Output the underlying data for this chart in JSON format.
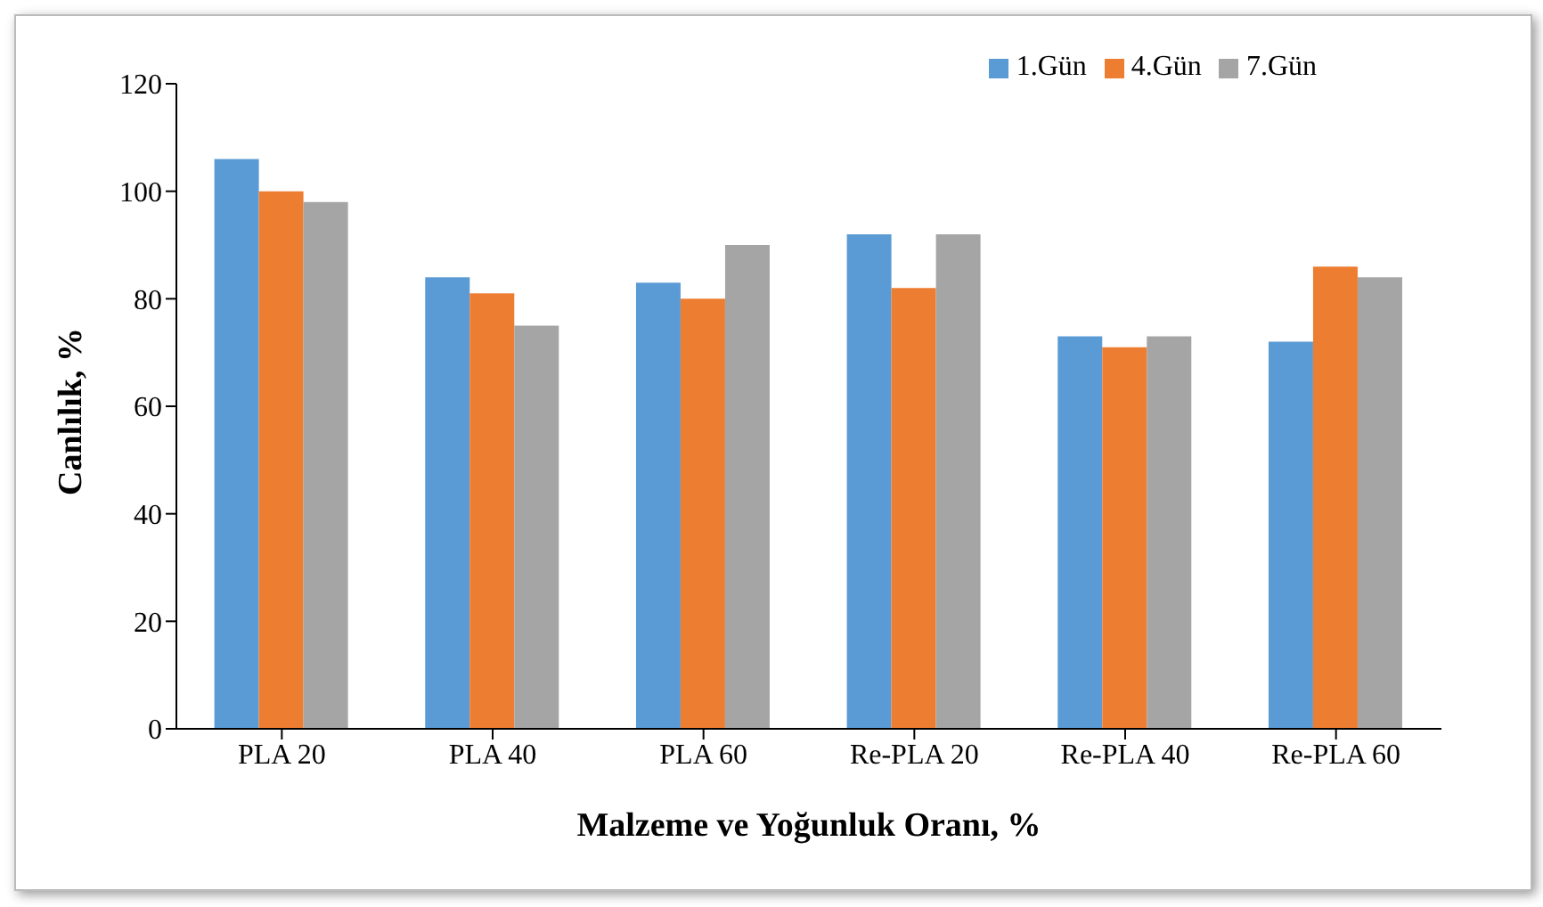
{
  "chart_data": {
    "type": "bar",
    "xlabel": "Malzeme ve Yoğunluk Oranı, %",
    "ylabel": "Canlılık, %",
    "categories": [
      "PLA 20",
      "PLA 40",
      "PLA 60",
      "Re-PLA 20",
      "Re-PLA 40",
      "Re-PLA 60"
    ],
    "series": [
      {
        "name": "1.Gün",
        "color": "#5b9bd5",
        "values": [
          106,
          84,
          83,
          92,
          73,
          72
        ]
      },
      {
        "name": "4.Gün",
        "color": "#ed7d31",
        "values": [
          100,
          81,
          80,
          82,
          71,
          86
        ]
      },
      {
        "name": "7.Gün",
        "color": "#a5a5a5",
        "values": [
          98,
          75,
          90,
          92,
          73,
          84
        ]
      }
    ],
    "ylim": [
      0,
      120
    ],
    "yticks": [
      0,
      20,
      40,
      60,
      80,
      100,
      120
    ],
    "legend": "top right"
  }
}
